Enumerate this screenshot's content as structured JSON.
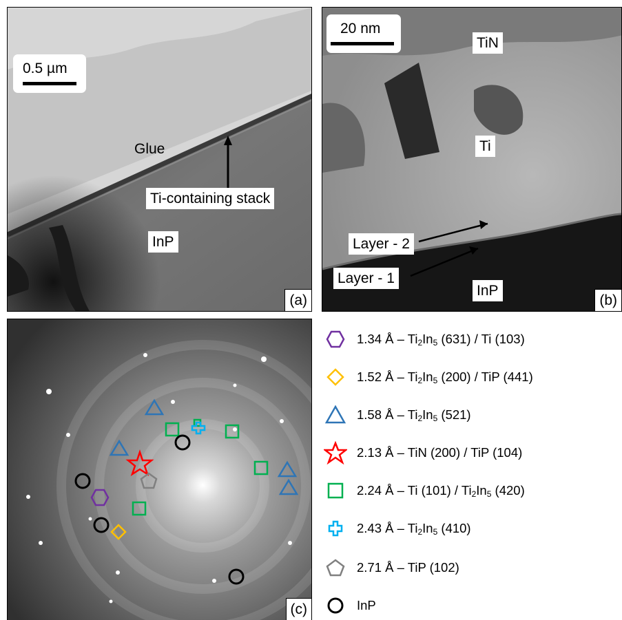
{
  "panel_a": {
    "scale_bar": "0.5 µm",
    "labels": {
      "glue": "Glue",
      "stack": "Ti-containing stack",
      "substrate": "InP"
    },
    "corner_label": "(a)"
  },
  "panel_b": {
    "scale_bar": "20 nm",
    "labels": {
      "top": "TiN",
      "middle": "Ti",
      "layer2": "Layer - 2",
      "layer1": "Layer - 1",
      "substrate": "InP"
    },
    "corner_label": "(b)"
  },
  "panel_c": {
    "corner_label": "(c)"
  },
  "legend": [
    {
      "marker": "hexagon-icon",
      "color": "#7030a0",
      "parts": [
        "1.34 Å – Ti",
        "2",
        "In",
        "5",
        " (631) / Ti (103)"
      ]
    },
    {
      "marker": "diamond-icon",
      "color": "#ffc000",
      "parts": [
        "1.52 Å – Ti",
        "2",
        "In",
        "5",
        " (200) / TiP (441)"
      ]
    },
    {
      "marker": "triangle-icon",
      "color": "#2e75b6",
      "parts": [
        "1.58 Å – Ti",
        "2",
        "In",
        "5",
        " (521)"
      ]
    },
    {
      "marker": "star-icon",
      "color": "#ff0000",
      "parts": [
        "2.13 Å – TiN (200) / TiP (104)"
      ]
    },
    {
      "marker": "square-icon",
      "color": "#00b050",
      "parts": [
        "2.24 Å – Ti (101) / Ti",
        "2",
        "In",
        "5",
        " (420)"
      ]
    },
    {
      "marker": "cross-icon",
      "color": "#00b0f0",
      "parts": [
        "2.43 Å – Ti",
        "2",
        "In",
        "5",
        " (410)"
      ]
    },
    {
      "marker": "pentagon-icon",
      "color": "#808080",
      "parts": [
        "2.71 Å – TiP (102)"
      ]
    },
    {
      "marker": "circle-icon",
      "color": "#000000",
      "parts": [
        "InP"
      ]
    }
  ]
}
